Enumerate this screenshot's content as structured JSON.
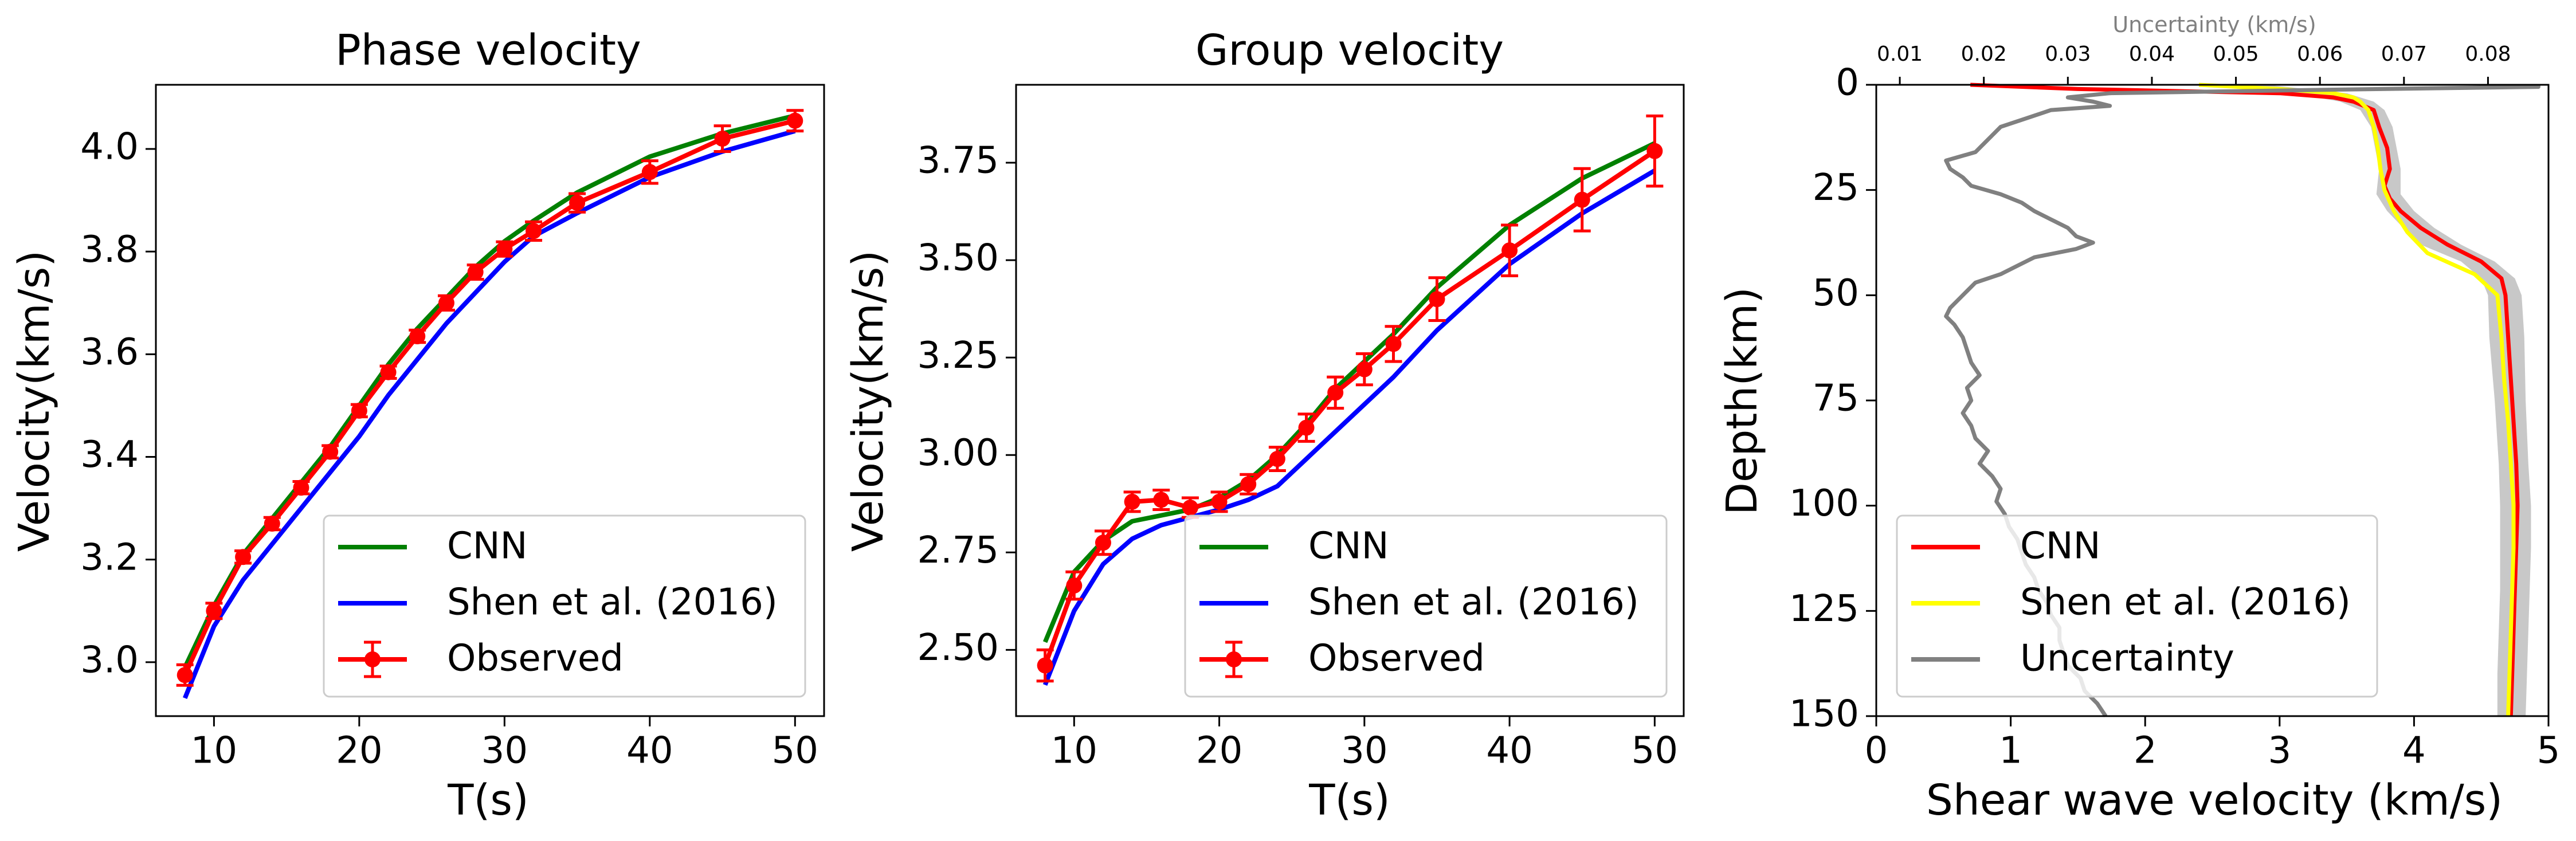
{
  "chart_data": [
    {
      "type": "line",
      "title": "Phase velocity",
      "xlabel": "T(s)",
      "ylabel": "Velocity(km/s)",
      "xlim": [
        6,
        52
      ],
      "ylim": [
        2.895,
        4.125
      ],
      "xticks": [
        10,
        20,
        30,
        40,
        50
      ],
      "yticks": [
        3.0,
        3.2,
        3.4,
        3.6,
        3.8,
        4.0
      ],
      "xtick_labels": [
        "10",
        "20",
        "30",
        "40",
        "50"
      ],
      "ytick_labels": [
        "3.0",
        "3.2",
        "3.4",
        "3.6",
        "3.8",
        "4.0"
      ],
      "grid": false,
      "legend_position": "lower-right",
      "series": [
        {
          "name": "CNN",
          "color": "#008000",
          "kind": "line",
          "x": [
            8,
            10,
            12,
            14,
            16,
            18,
            20,
            22,
            24,
            26,
            28,
            30,
            32,
            35,
            40,
            45,
            50
          ],
          "y": [
            2.99,
            3.11,
            3.21,
            3.28,
            3.35,
            3.42,
            3.5,
            3.58,
            3.65,
            3.71,
            3.77,
            3.82,
            3.86,
            3.915,
            3.985,
            4.03,
            4.065
          ]
        },
        {
          "name": "Shen et al. (2016)",
          "color": "#0000ff",
          "kind": "line",
          "x": [
            8,
            10,
            12,
            14,
            16,
            18,
            20,
            22,
            24,
            26,
            28,
            30,
            32,
            35,
            40,
            45,
            50
          ],
          "y": [
            2.93,
            3.07,
            3.16,
            3.23,
            3.3,
            3.37,
            3.44,
            3.52,
            3.59,
            3.66,
            3.72,
            3.78,
            3.83,
            3.875,
            3.945,
            3.995,
            4.035
          ]
        },
        {
          "name": "Observed",
          "color": "#ff0000",
          "kind": "errorbar",
          "x": [
            8,
            10,
            12,
            14,
            16,
            18,
            20,
            22,
            24,
            26,
            28,
            30,
            32,
            35,
            40,
            45,
            50
          ],
          "y": [
            2.975,
            3.1,
            3.205,
            3.27,
            3.34,
            3.41,
            3.49,
            3.565,
            3.635,
            3.7,
            3.76,
            3.805,
            3.84,
            3.895,
            3.955,
            4.02,
            4.055
          ],
          "err": [
            0.02,
            0.015,
            0.012,
            0.012,
            0.012,
            0.012,
            0.012,
            0.012,
            0.012,
            0.014,
            0.014,
            0.014,
            0.018,
            0.018,
            0.022,
            0.025,
            0.02
          ]
        }
      ]
    },
    {
      "type": "line",
      "title": "Group velocity",
      "xlabel": "T(s)",
      "ylabel": "Velocity(km/s)",
      "xlim": [
        6,
        52
      ],
      "ylim": [
        2.33,
        3.95
      ],
      "xticks": [
        10,
        20,
        30,
        40,
        50
      ],
      "yticks": [
        2.5,
        2.75,
        3.0,
        3.25,
        3.5,
        3.75
      ],
      "xtick_labels": [
        "10",
        "20",
        "30",
        "40",
        "50"
      ],
      "ytick_labels": [
        "2.50",
        "2.75",
        "3.00",
        "3.25",
        "3.50",
        "3.75"
      ],
      "grid": false,
      "legend_position": "lower-right",
      "series": [
        {
          "name": "CNN",
          "color": "#008000",
          "kind": "line",
          "x": [
            8,
            10,
            12,
            14,
            16,
            18,
            20,
            22,
            24,
            26,
            28,
            30,
            32,
            35,
            40,
            45,
            50
          ],
          "y": [
            2.52,
            2.7,
            2.78,
            2.83,
            2.845,
            2.86,
            2.89,
            2.935,
            3.0,
            3.08,
            3.17,
            3.24,
            3.31,
            3.43,
            3.59,
            3.71,
            3.8
          ]
        },
        {
          "name": "Shen et al. (2016)",
          "color": "#0000ff",
          "kind": "line",
          "x": [
            8,
            10,
            12,
            14,
            16,
            18,
            20,
            22,
            24,
            26,
            28,
            30,
            32,
            35,
            40,
            45,
            50
          ],
          "y": [
            2.41,
            2.6,
            2.72,
            2.785,
            2.82,
            2.84,
            2.86,
            2.885,
            2.92,
            2.99,
            3.06,
            3.13,
            3.2,
            3.32,
            3.49,
            3.62,
            3.73
          ]
        },
        {
          "name": "Observed",
          "color": "#ff0000",
          "kind": "errorbar",
          "x": [
            8,
            10,
            12,
            14,
            16,
            18,
            20,
            22,
            24,
            26,
            28,
            30,
            32,
            35,
            40,
            45,
            50
          ],
          "y": [
            2.46,
            2.665,
            2.775,
            2.88,
            2.885,
            2.865,
            2.88,
            2.925,
            2.99,
            3.07,
            3.16,
            3.22,
            3.285,
            3.4,
            3.525,
            3.655,
            3.78
          ],
          "err": [
            0.04,
            0.035,
            0.03,
            0.025,
            0.025,
            0.025,
            0.025,
            0.025,
            0.03,
            0.035,
            0.04,
            0.04,
            0.045,
            0.055,
            0.065,
            0.08,
            0.09
          ]
        }
      ]
    },
    {
      "type": "line",
      "title": "",
      "xlabel": "Shear wave velocity (km/s)",
      "ylabel": "Depth(km)",
      "xlim": [
        0,
        5
      ],
      "ylim": [
        150,
        0
      ],
      "xticks": [
        0,
        1,
        2,
        3,
        4,
        5
      ],
      "yticks": [
        0,
        25,
        50,
        75,
        100,
        125,
        150
      ],
      "xtick_labels": [
        "0",
        "1",
        "2",
        "3",
        "4",
        "5"
      ],
      "ytick_labels": [
        "0",
        "25",
        "50",
        "75",
        "100",
        "125",
        "150"
      ],
      "top_axis": {
        "label": "Uncertainty (km/s)",
        "lim": [
          0.0072,
          0.0872
        ],
        "ticks": [
          0.01,
          0.02,
          0.03,
          0.04,
          0.05,
          0.06,
          0.07,
          0.08
        ],
        "tick_labels": [
          "0.01",
          "0.02",
          "0.03",
          "0.04",
          "0.05",
          "0.06",
          "0.07",
          "0.08"
        ],
        "color": "#808080"
      },
      "grid": false,
      "legend_position": "lower-left",
      "band": {
        "color": "#c8c8c8",
        "depth": [
          0,
          2,
          4,
          6,
          10,
          20,
          26,
          30,
          34,
          38,
          42,
          46,
          50,
          60,
          75,
          90,
          100,
          110,
          120,
          130,
          140,
          150
        ],
        "lower": [
          2.6,
          3.1,
          3.45,
          3.6,
          3.68,
          3.74,
          3.72,
          3.8,
          3.92,
          4.05,
          4.35,
          4.5,
          4.55,
          4.56,
          4.6,
          4.63,
          4.64,
          4.64,
          4.64,
          4.63,
          4.62,
          4.62
        ],
        "upper": [
          2.9,
          3.5,
          3.7,
          3.78,
          3.84,
          3.9,
          3.9,
          4.0,
          4.15,
          4.35,
          4.6,
          4.75,
          4.8,
          4.82,
          4.83,
          4.85,
          4.87,
          4.87,
          4.86,
          4.85,
          4.84,
          4.83
        ]
      },
      "series": [
        {
          "name": "CNN",
          "color": "#ff0000",
          "kind": "profile",
          "depth": [
            0,
            1,
            2,
            3,
            4,
            6,
            10,
            15,
            20,
            24,
            27,
            30,
            34,
            38,
            42,
            46,
            50,
            55,
            60,
            70,
            80,
            90,
            100,
            110,
            120,
            130,
            140,
            150
          ],
          "value": [
            0.7,
            1.5,
            3.0,
            3.4,
            3.55,
            3.7,
            3.74,
            3.8,
            3.82,
            3.78,
            3.82,
            3.9,
            4.05,
            4.25,
            4.5,
            4.65,
            4.68,
            4.69,
            4.7,
            4.72,
            4.74,
            4.76,
            4.77,
            4.76,
            4.75,
            4.74,
            4.73,
            4.72
          ]
        },
        {
          "name": "Shen et al. (2016)",
          "color": "#ffff00",
          "kind": "profile",
          "depth": [
            0,
            1,
            2,
            3,
            4,
            6,
            10,
            15,
            20,
            25,
            30,
            35,
            40,
            45,
            50,
            60,
            70,
            80,
            90,
            100,
            110,
            120,
            130,
            140,
            150
          ],
          "value": [
            2.4,
            3.0,
            3.4,
            3.55,
            3.6,
            3.66,
            3.7,
            3.73,
            3.75,
            3.78,
            3.85,
            3.95,
            4.1,
            4.45,
            4.62,
            4.65,
            4.67,
            4.7,
            4.72,
            4.74,
            4.74,
            4.73,
            4.72,
            4.71,
            4.7
          ]
        },
        {
          "name": "Uncertainty",
          "color": "#808080",
          "kind": "profile",
          "axis": "top",
          "depth": [
            0,
            0.5,
            1.2,
            2,
            3,
            4,
            5,
            6,
            8,
            10,
            12,
            14,
            16,
            18,
            20,
            22,
            24,
            26,
            28,
            30,
            32,
            34,
            36,
            37.5,
            39,
            41,
            43,
            45,
            47,
            49,
            51,
            53,
            55,
            57,
            60,
            63,
            66,
            69,
            72,
            75,
            78,
            81,
            84,
            87,
            90,
            93,
            96,
            99,
            102,
            105,
            108,
            111,
            114,
            117,
            120,
            123,
            126,
            129,
            132,
            135,
            138,
            141,
            144,
            147,
            150
          ],
          "value": [
            0.086,
            0.086,
            0.06,
            0.035,
            0.03,
            0.033,
            0.035,
            0.028,
            0.025,
            0.022,
            0.021,
            0.02,
            0.019,
            0.0155,
            0.016,
            0.0175,
            0.0185,
            0.022,
            0.0245,
            0.026,
            0.028,
            0.03,
            0.031,
            0.033,
            0.031,
            0.026,
            0.024,
            0.022,
            0.019,
            0.018,
            0.017,
            0.016,
            0.0155,
            0.0165,
            0.0175,
            0.018,
            0.0185,
            0.0195,
            0.018,
            0.0185,
            0.0175,
            0.0185,
            0.019,
            0.0205,
            0.0195,
            0.021,
            0.022,
            0.0215,
            0.0225,
            0.023,
            0.024,
            0.0245,
            0.025,
            0.026,
            0.0265,
            0.0275,
            0.028,
            0.029,
            0.029,
            0.0295,
            0.03,
            0.0315,
            0.032,
            0.0335,
            0.0345
          ]
        }
      ]
    }
  ]
}
